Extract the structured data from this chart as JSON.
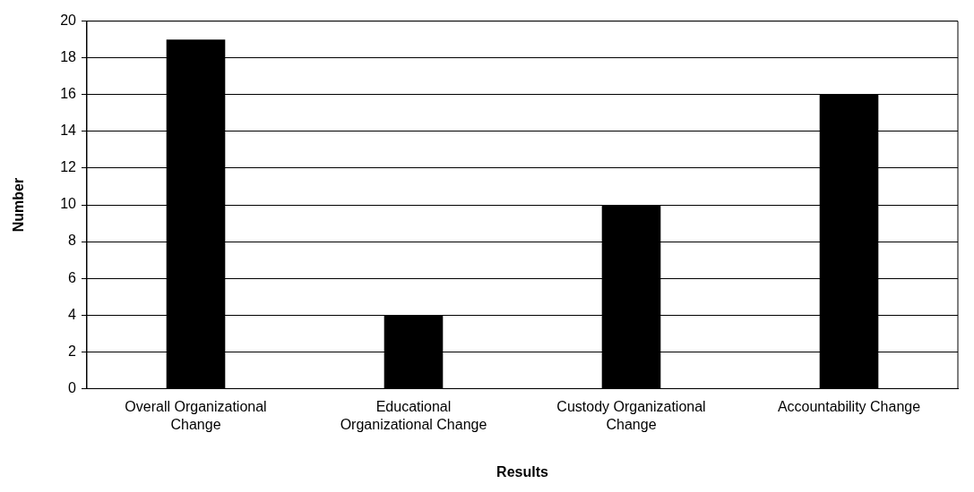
{
  "chart_data": {
    "type": "bar",
    "xlabel": "Results",
    "ylabel": "Number",
    "categories": [
      "Overall Organizational Change",
      "Educational Organizational Change",
      "Custody Organizational Change",
      "Accountability Change"
    ],
    "values": [
      19,
      4,
      10,
      16
    ],
    "color": "#000000",
    "ylim": [
      0,
      20
    ],
    "yticks": [
      0,
      2,
      4,
      6,
      8,
      10,
      12,
      14,
      16,
      18,
      20
    ],
    "grid": "y",
    "legend": false
  }
}
